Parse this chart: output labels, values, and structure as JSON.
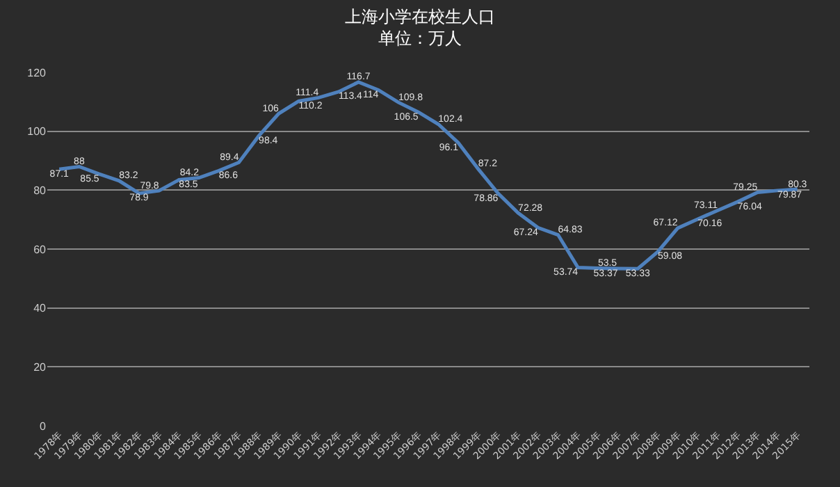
{
  "chart_data": {
    "type": "line",
    "title": "上海小学在校生人口",
    "subtitle": "单位：万人",
    "categories": [
      "1978年",
      "1979年",
      "1980年",
      "1981年",
      "1982年",
      "1983年",
      "1984年",
      "1985年",
      "1986年",
      "1987年",
      "1988年",
      "1989年",
      "1990年",
      "1991年",
      "1992年",
      "1993年",
      "1994年",
      "1995年",
      "1996年",
      "1997年",
      "1998年",
      "1999年",
      "2000年",
      "2001年",
      "2002年",
      "2003年",
      "2004年",
      "2005年",
      "2006年",
      "2007年",
      "2008年",
      "2009年",
      "2010年",
      "2011年",
      "2012年",
      "2013年",
      "2014年",
      "2015年"
    ],
    "series": [
      {
        "color": "#4f81bd",
        "values": [
          87.1,
          88,
          85.5,
          83.2,
          78.9,
          79.8,
          83.5,
          84.2,
          86.6,
          89.4,
          98.4,
          106,
          110.2,
          111.4,
          113.4,
          116.7,
          114,
          109.8,
          106.5,
          102.4,
          96.1,
          87.2,
          78.86,
          72.28,
          67.24,
          64.83,
          53.74,
          53.5,
          53.37,
          53.33,
          59.08,
          67.12,
          70.16,
          73.11,
          76.04,
          79.25,
          79.87,
          80.3
        ]
      }
    ],
    "ylim": [
      0,
      120
    ],
    "yticks": [
      0,
      20,
      40,
      60,
      80,
      100,
      120
    ],
    "grid": "y",
    "data_labels": true,
    "marker": "none",
    "line_style": "solid"
  }
}
